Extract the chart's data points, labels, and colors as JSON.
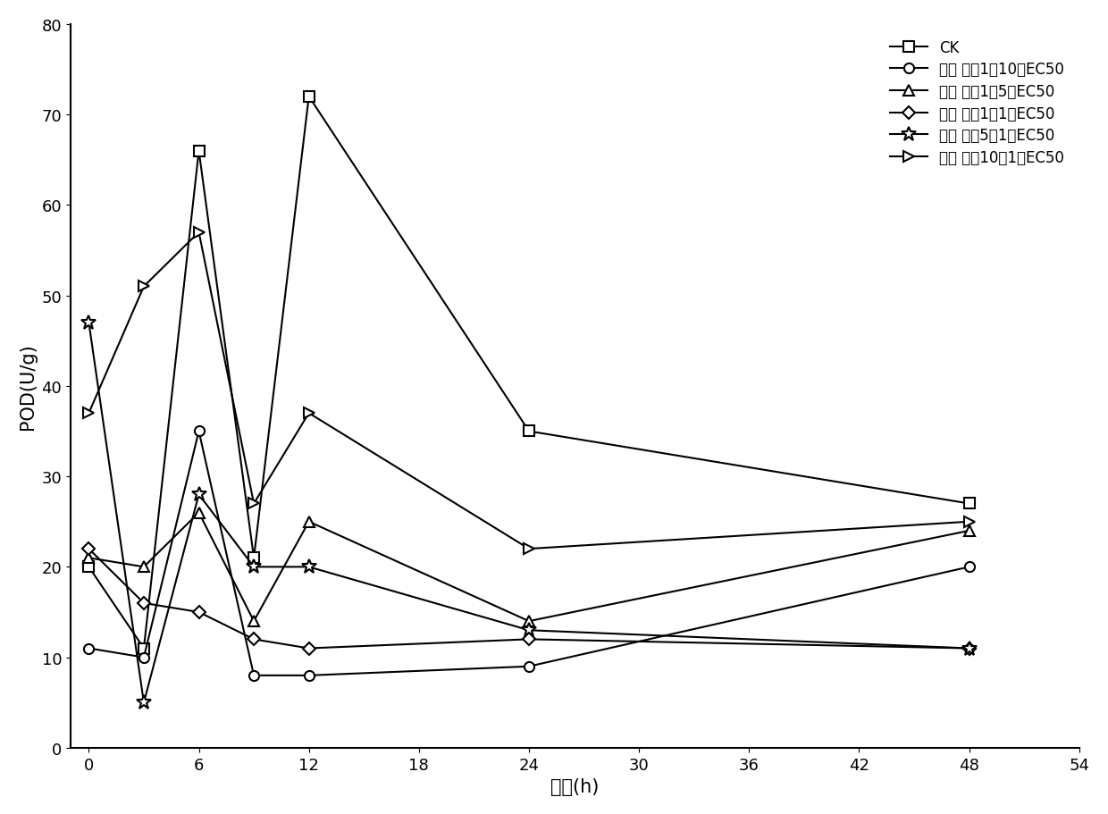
{
  "x_values": [
    0,
    3,
    6,
    9,
    12,
    24,
    48
  ],
  "series_order": [
    "CK",
    "bing_1_10",
    "bing_1_5",
    "bing_1_1",
    "bing_5_1",
    "bing_10_1"
  ],
  "series": {
    "CK": {
      "y": [
        20,
        11,
        66,
        21,
        72,
        35,
        27
      ],
      "marker": "s",
      "linestyle": "-",
      "color": "#000000",
      "markersize": 8,
      "label": "CK"
    },
    "bing_1_10": {
      "y": [
        11,
        10,
        35,
        8,
        8,
        9,
        20
      ],
      "marker": "o",
      "linestyle": "-",
      "color": "#000000",
      "markersize": 8,
      "label": "丙： 胵（1：10）EC50"
    },
    "bing_1_5": {
      "y": [
        21,
        20,
        26,
        14,
        25,
        14,
        24
      ],
      "marker": "^",
      "linestyle": "-",
      "color": "#000000",
      "markersize": 8,
      "label": "丙： 胵（1：5）EC50"
    },
    "bing_1_1": {
      "y": [
        22,
        16,
        15,
        12,
        11,
        12,
        11
      ],
      "marker": "D",
      "linestyle": "-",
      "color": "#000000",
      "markersize": 7,
      "label": "丙： 胵（1：1）EC50"
    },
    "bing_5_1": {
      "y": [
        47,
        5,
        28,
        20,
        20,
        13,
        11
      ],
      "marker": "*",
      "linestyle": "-",
      "color": "#000000",
      "markersize": 12,
      "label": "丙： 胵（5：1）EC50"
    },
    "bing_10_1": {
      "y": [
        37,
        51,
        57,
        27,
        37,
        22,
        25
      ],
      "marker": ">",
      "linestyle": "-",
      "color": "#000000",
      "markersize": 8,
      "label": "丙： 胵（10：1）EC50"
    }
  },
  "xlabel": "时间(h)",
  "ylabel": "POD(U/g)",
  "xlim": [
    -1,
    54
  ],
  "ylim": [
    0,
    80
  ],
  "xticks": [
    0,
    6,
    12,
    18,
    24,
    30,
    36,
    42,
    48,
    54
  ],
  "yticks": [
    0,
    10,
    20,
    30,
    40,
    50,
    60,
    70,
    80
  ],
  "background_color": "#ffffff",
  "label_fontsize": 15,
  "tick_fontsize": 13,
  "legend_fontsize": 12
}
